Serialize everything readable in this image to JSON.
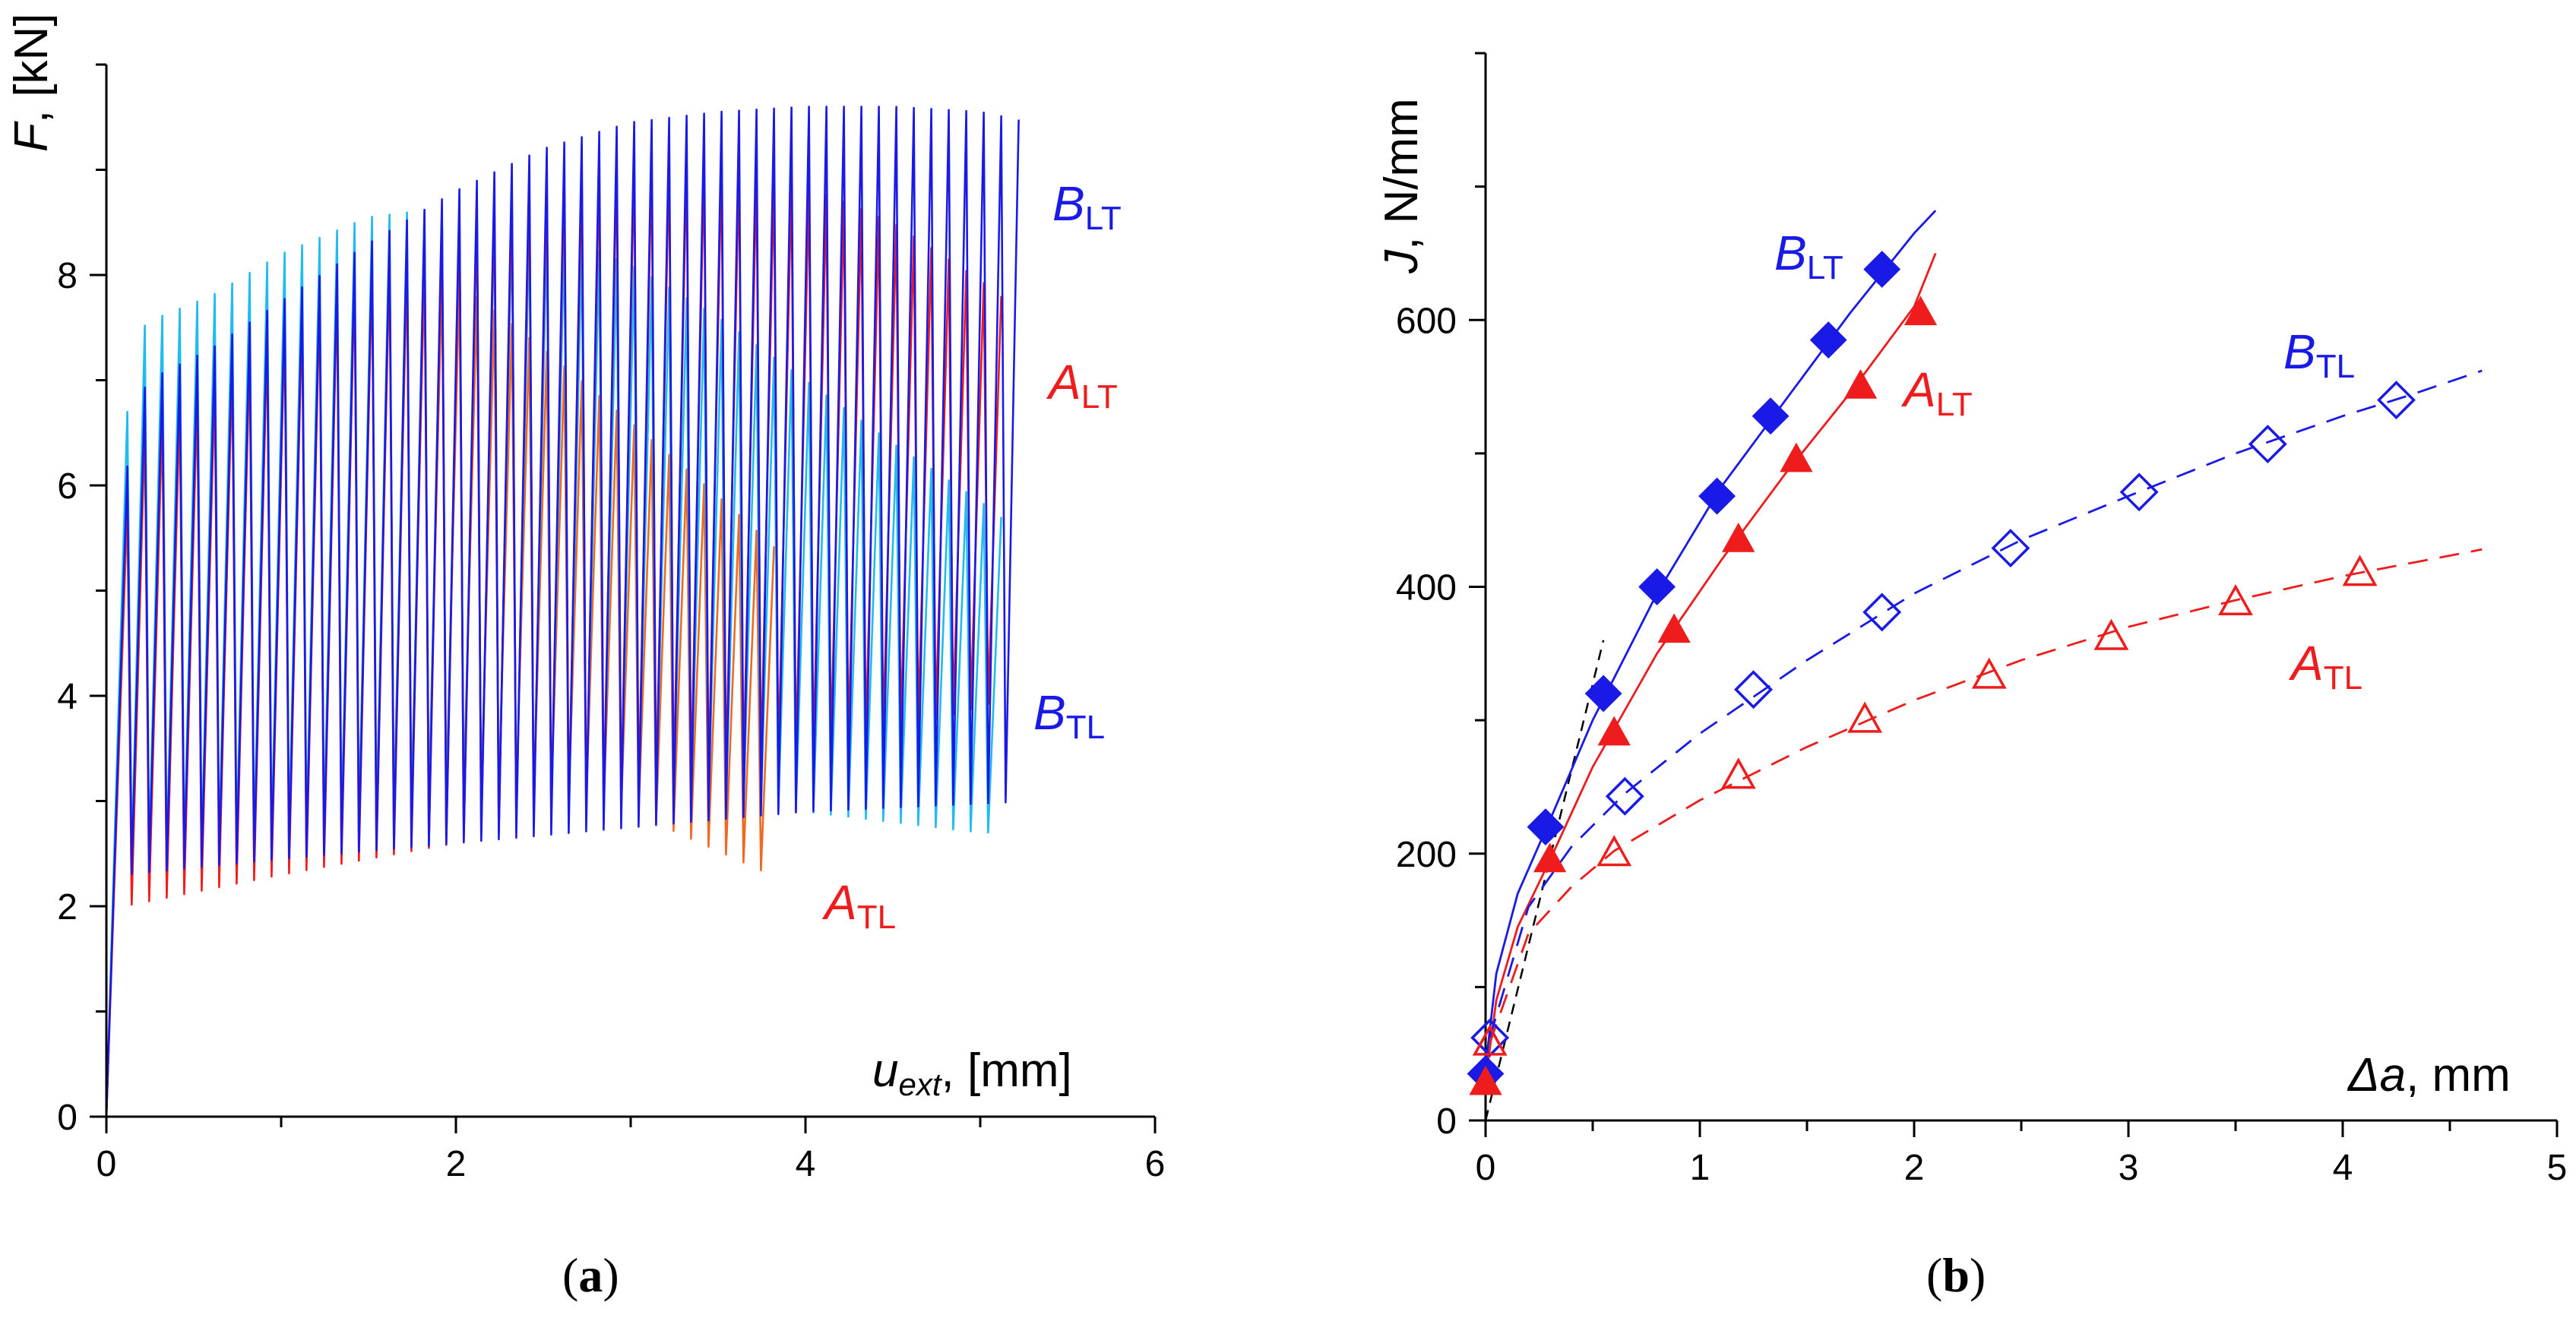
{
  "colors": {
    "blue": "#1a1ae6",
    "red": "#ee1c1c",
    "cyan": "#22bbee",
    "orange": "#ee6a22",
    "axis": "#000000",
    "dashed_black": "#000000"
  },
  "chart_data": [
    {
      "type": "line",
      "panel_label": {
        "open": "(",
        "letter": "a",
        "close": ")"
      },
      "xlabel": {
        "main": "u",
        "sub": "ext",
        "unit": ", [mm]"
      },
      "ylabel": {
        "main": "F",
        "unit": ", [kN]"
      },
      "xlim": [
        0,
        6
      ],
      "ylim": [
        0,
        10
      ],
      "xticks": [
        0,
        2,
        4,
        6
      ],
      "yticks": [
        0,
        2,
        4,
        6,
        8
      ],
      "x_tick_labels": [
        "0",
        "2",
        "4",
        "6"
      ],
      "y_tick_labels": [
        "0",
        "2",
        "4",
        "6",
        "8"
      ],
      "series": [
        {
          "name": "B_LT",
          "label_main": "B",
          "label_sub": "LT",
          "color": "#1a1ae6",
          "end_x": 5.3,
          "envelope_x": [
            0,
            0.05,
            0.1,
            0.2,
            0.3,
            0.6,
            1.0,
            1.5,
            2.0,
            2.5,
            3.0,
            3.5,
            4.0,
            4.5,
            5.0,
            5.3
          ],
          "envelope_y": [
            0,
            3.5,
            6.0,
            6.9,
            7.05,
            7.3,
            7.75,
            8.3,
            8.8,
            9.2,
            9.45,
            9.55,
            9.6,
            9.6,
            9.55,
            9.45
          ],
          "valley_x": [
            0.1,
            1.0,
            2.0,
            3.0,
            4.0,
            5.3
          ],
          "valley_y": [
            2.3,
            2.45,
            2.6,
            2.75,
            2.9,
            3.0
          ]
        },
        {
          "name": "A_LT",
          "label_main": "A",
          "label_sub": "LT",
          "color": "#ee1c1c",
          "end_x": 5.2,
          "envelope_x": [
            0,
            0.05,
            0.1,
            0.2,
            0.3,
            0.6,
            1.0,
            1.5,
            2.0,
            2.5,
            3.0,
            3.3,
            3.6,
            4.0,
            4.5,
            5.0,
            5.2
          ],
          "envelope_y": [
            0,
            3.3,
            5.8,
            6.7,
            6.85,
            7.1,
            7.55,
            8.1,
            8.55,
            8.95,
            9.1,
            9.12,
            9.05,
            8.85,
            8.5,
            7.95,
            7.7
          ],
          "valley_x": [
            0.1,
            1.0,
            2.0,
            3.0,
            4.0,
            5.2
          ],
          "valley_y": [
            2.0,
            2.3,
            2.6,
            3.0,
            3.4,
            4.0
          ]
        },
        {
          "name": "B_TL",
          "label_main": "B",
          "label_sub": "TL",
          "color": "#22bbee",
          "end_x": 5.2,
          "envelope_x": [
            0,
            0.05,
            0.1,
            0.2,
            0.3,
            0.6,
            1.0,
            1.5,
            2.0,
            2.5,
            3.0,
            3.5,
            4.0,
            4.5,
            5.0,
            5.2
          ],
          "envelope_y": [
            0,
            4.0,
            6.5,
            7.5,
            7.6,
            7.8,
            8.2,
            8.55,
            8.65,
            8.45,
            8.1,
            7.6,
            7.0,
            6.4,
            5.85,
            5.6
          ],
          "valley_x": [
            0.1,
            1.0,
            2.0,
            3.0,
            4.0,
            5.0
          ],
          "valley_y": [
            2.4,
            2.6,
            2.8,
            3.0,
            2.9,
            2.7
          ]
        },
        {
          "name": "A_TL",
          "label_main": "A",
          "label_sub": "TL",
          "color": "#ee6a22",
          "end_x": 3.9,
          "envelope_x": [
            0,
            0.05,
            0.1,
            0.2,
            0.3,
            0.6,
            1.0,
            1.3,
            1.6,
            2.0,
            2.5,
            3.0,
            3.5,
            3.9
          ],
          "envelope_y": [
            0,
            3.3,
            5.6,
            6.5,
            6.6,
            6.9,
            7.5,
            7.9,
            8.1,
            7.95,
            7.3,
            6.6,
            5.9,
            5.3
          ],
          "valley_x": [
            0.1,
            1.0,
            2.0,
            3.0,
            3.8
          ],
          "valley_y": [
            2.0,
            2.6,
            3.1,
            2.9,
            2.3
          ]
        }
      ],
      "cycle_spacing_mm": 0.1
    },
    {
      "type": "scatter",
      "panel_label": {
        "open": "(",
        "letter": "b",
        "close": ")"
      },
      "xlabel": {
        "main": "Δa",
        "unit": ", mm"
      },
      "ylabel": {
        "main": "J",
        "unit": ", N/mm"
      },
      "xlim": [
        0,
        5
      ],
      "ylim": [
        0,
        800
      ],
      "xticks": [
        0,
        1,
        2,
        3,
        4,
        5
      ],
      "yticks": [
        0,
        200,
        400,
        600
      ],
      "x_tick_labels": [
        "0",
        "1",
        "2",
        "3",
        "4",
        "5"
      ],
      "y_tick_labels": [
        "0",
        "200",
        "400",
        "600"
      ],
      "series": [
        {
          "name": "B_LT",
          "label_main": "B",
          "label_sub": "LT",
          "color": "#1a1ae6",
          "marker": "diamond",
          "filled": true,
          "fit": "solid",
          "x": [
            0.0,
            0.28,
            0.55,
            0.8,
            1.08,
            1.33,
            1.6,
            1.85
          ],
          "y": [
            35,
            220,
            320,
            400,
            468,
            528,
            585,
            638
          ],
          "fit_x": [
            0,
            0.05,
            0.15,
            0.3,
            0.5,
            0.8,
            1.1,
            1.4,
            1.7,
            2.0,
            2.1
          ],
          "fit_y": [
            40,
            110,
            170,
            225,
            300,
            395,
            475,
            540,
            605,
            665,
            682
          ]
        },
        {
          "name": "A_LT",
          "label_main": "A",
          "label_sub": "LT",
          "color": "#ee1c1c",
          "marker": "triangle",
          "filled": true,
          "fit": "solid",
          "x": [
            0.0,
            0.3,
            0.6,
            0.88,
            1.18,
            1.45,
            1.75,
            2.03
          ],
          "y": [
            28,
            195,
            290,
            367,
            435,
            495,
            550,
            605
          ],
          "fit_x": [
            0,
            0.05,
            0.15,
            0.3,
            0.5,
            0.8,
            1.1,
            1.4,
            1.7,
            2.0,
            2.1
          ],
          "fit_y": [
            30,
            90,
            145,
            195,
            265,
            350,
            420,
            485,
            545,
            610,
            650
          ]
        },
        {
          "name": "B_TL",
          "label_main": "B",
          "label_sub": "TL",
          "color": "#1a1ae6",
          "marker": "diamond",
          "filled": false,
          "fit": "dashed",
          "x": [
            0.02,
            0.65,
            1.25,
            1.85,
            2.45,
            3.05,
            3.65,
            4.25
          ],
          "y": [
            62,
            243,
            323,
            381,
            429,
            471,
            507,
            540
          ],
          "fit_x": [
            0.02,
            0.2,
            0.4,
            0.65,
            1.0,
            1.5,
            2.0,
            2.5,
            3.0,
            3.5,
            4.0,
            4.3,
            4.65
          ],
          "fit_y": [
            62,
            160,
            205,
            245,
            290,
            345,
            395,
            435,
            468,
            500,
            528,
            543,
            562
          ]
        },
        {
          "name": "A_TL",
          "label_main": "A",
          "label_sub": "TL",
          "color": "#ee1c1c",
          "marker": "triangle",
          "filled": false,
          "fit": "dashed",
          "x": [
            0.02,
            0.6,
            1.18,
            1.77,
            2.35,
            2.92,
            3.5,
            4.08
          ],
          "y": [
            58,
            200,
            258,
            300,
            333,
            362,
            388,
            410
          ],
          "fit_x": [
            0.02,
            0.2,
            0.4,
            0.6,
            1.0,
            1.5,
            2.0,
            2.5,
            3.0,
            3.5,
            4.0,
            4.65
          ],
          "fit_y": [
            58,
            140,
            175,
            202,
            240,
            280,
            315,
            345,
            370,
            390,
            408,
            428
          ]
        }
      ],
      "blunting_line": {
        "x": [
          0.0,
          0.55
        ],
        "y": [
          0,
          360
        ],
        "color": "#000000"
      }
    }
  ]
}
